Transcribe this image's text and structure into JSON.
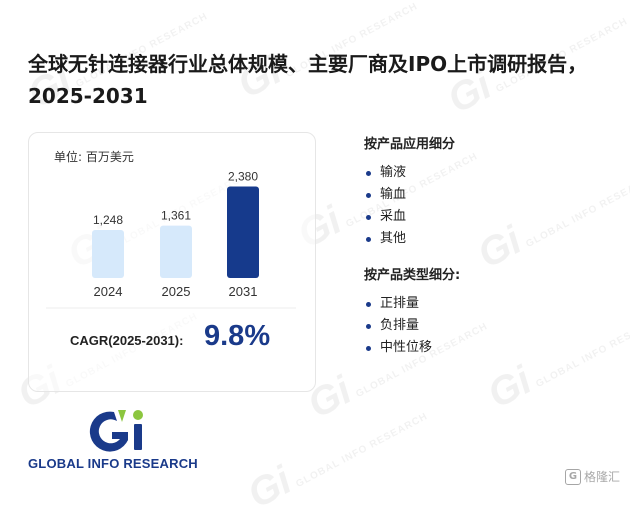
{
  "page": {
    "title": "全球无针连接器行业总体规模、主要厂商及IPO上市调研报告，2025-2031"
  },
  "chart_data": {
    "type": "bar",
    "unit_label": "单位: 百万美元",
    "categories": [
      "2024",
      "2025",
      "2031"
    ],
    "values": [
      1248,
      1361,
      2380
    ],
    "value_labels": [
      "1,248",
      "1,361",
      "2,380"
    ],
    "bar_colors": [
      "#d6e9fb",
      "#d6e9fb",
      "#163a8c"
    ],
    "ylim": [
      0,
      2600
    ],
    "xlabel": "",
    "ylabel": "",
    "grid": false,
    "title": ""
  },
  "cagr": {
    "label": "CAGR(2025-2031):",
    "value": "9.8%"
  },
  "segments": {
    "application": {
      "heading": "按产品应用细分",
      "items": [
        "输液",
        "输血",
        "采血",
        "其他"
      ]
    },
    "type": {
      "heading": "按产品类型细分:",
      "items": [
        "正排量",
        "负排量",
        "中性位移"
      ]
    }
  },
  "brand": {
    "name": "GLOBAL INFO RESEARCH",
    "watermark_text": "GLOBAL INFO RESEARCH"
  },
  "corner_badge": {
    "glyph": "G",
    "text": "格隆汇"
  },
  "colors": {
    "accent": "#1a3a8a",
    "bar_light": "#d6e9fb",
    "bar_dark": "#163a8c",
    "brand_green": "#8cc63f"
  }
}
